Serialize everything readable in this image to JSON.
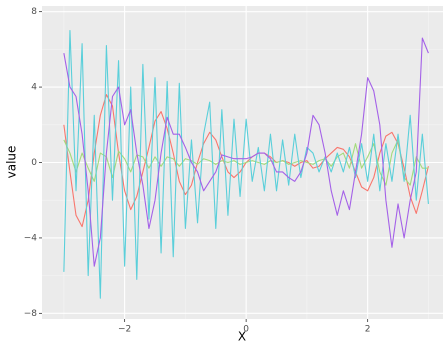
{
  "chart_data": {
    "type": "line",
    "xlabel": "X",
    "ylabel": "value",
    "x": [
      -3.0,
      -2.9,
      -2.8,
      -2.7,
      -2.6,
      -2.5,
      -2.4,
      -2.3,
      -2.2,
      -2.1,
      -2.0,
      -1.9,
      -1.8,
      -1.7,
      -1.6,
      -1.5,
      -1.4,
      -1.3,
      -1.2,
      -1.1,
      -1.0,
      -0.9,
      -0.8,
      -0.7,
      -0.6,
      -0.5,
      -0.4,
      -0.3,
      -0.2,
      -0.1,
      0.0,
      0.1,
      0.2,
      0.3,
      0.4,
      0.5,
      0.6,
      0.7,
      0.8,
      0.9,
      1.0,
      1.1,
      1.2,
      1.3,
      1.4,
      1.5,
      1.6,
      1.7,
      1.8,
      1.9,
      2.0,
      2.1,
      2.2,
      2.3,
      2.4,
      2.5,
      2.6,
      2.7,
      2.8,
      2.9,
      3.0
    ],
    "series": [
      {
        "color": "#F8766D",
        "values": [
          2,
          -0.5,
          -2.8,
          -3.4,
          -2,
          0.5,
          2.5,
          3.6,
          3.0,
          0.5,
          -1.5,
          -2.5,
          -1.8,
          -0.5,
          0.8,
          2.2,
          2.7,
          1.8,
          0.5,
          -1.0,
          -1.7,
          -1.2,
          0,
          1.0,
          1.6,
          1.2,
          0.3,
          -0.5,
          -0.8,
          -0.5,
          0,
          0.3,
          0.5,
          0.5,
          0.3,
          0,
          0.1,
          0,
          -0.2,
          0,
          0.1,
          -0.3,
          -0.2,
          0.2,
          0.5,
          0.8,
          0.7,
          0.3,
          -0.5,
          -1.3,
          -1.5,
          -0.8,
          0.5,
          1.4,
          1.6,
          1.0,
          -0.3,
          -1.8,
          -2.7,
          -1.5,
          -0.2
        ]
      },
      {
        "color": "#A3DA7B",
        "values": [
          1.2,
          0.5,
          -0.5,
          0.5,
          -0.3,
          -1.0,
          0.5,
          0.3,
          -0.8,
          0.6,
          0.2,
          -0.5,
          0.4,
          0.3,
          -0.3,
          0.3,
          -0.2,
          0.3,
          0.2,
          -0.2,
          0.2,
          0.1,
          -0.1,
          0.2,
          0.1,
          -0.1,
          0.1,
          0.0,
          0.1,
          -0.1,
          0.0,
          0.1,
          0.0,
          -0.1,
          0.1,
          0.0,
          0.1,
          -0.1,
          0.0,
          0.1,
          0.0,
          -0.1,
          0.1,
          0.2,
          -0.2,
          0.3,
          0.5,
          -0.3,
          1.0,
          -0.3,
          0.3,
          1.0,
          -0.5,
          -1.2,
          0.5,
          1.2,
          -0.8,
          -1.2,
          0.3,
          -0.3,
          -0.3
        ]
      },
      {
        "color": "#5ACFDA",
        "values": [
          -5.8,
          7.0,
          -1.5,
          6.3,
          -6.0,
          2.5,
          -7.2,
          6.2,
          -2.0,
          5.4,
          -5.5,
          4.0,
          -6.2,
          5.2,
          -3.0,
          4.5,
          -4.8,
          4.3,
          -5.0,
          4.2,
          -3.5,
          1.2,
          -3.2,
          1.5,
          3.2,
          -3.5,
          2.8,
          -2.8,
          2.3,
          -1.8,
          2.3,
          -1.0,
          0.8,
          -1.5,
          1.5,
          -1.5,
          1.2,
          -1.2,
          1.5,
          -0.8,
          0.8,
          0.5,
          -0.5,
          0.3,
          -0.5,
          0.5,
          -0.5,
          0.8,
          -0.8,
          1.0,
          -1.0,
          1.5,
          -1.5,
          1.0,
          -1.0,
          1.5,
          -1.0,
          2.5,
          -2.0,
          1.5,
          -2.2
        ]
      },
      {
        "color": "#A461E8",
        "values": [
          5.8,
          4.0,
          3.5,
          1.5,
          -1.5,
          -5.5,
          -4.0,
          0.5,
          3.5,
          4.0,
          2.0,
          2.8,
          0.5,
          -1.2,
          -3.5,
          -2.0,
          0.5,
          2.4,
          1.5,
          1.5,
          0.8,
          0,
          -0.5,
          -1.5,
          -1.0,
          -0.5,
          0.4,
          0.3,
          0.2,
          0.2,
          0.2,
          0.3,
          0.5,
          0.5,
          0.2,
          -0.5,
          -0.5,
          -0.8,
          -1.0,
          -0.5,
          0.5,
          2.5,
          2.0,
          0.5,
          -1.5,
          -2.8,
          -1.5,
          -2.5,
          -0.5,
          1.5,
          4.5,
          3.8,
          2.0,
          -2.0,
          -4.5,
          -2.2,
          -4.0,
          -2.0,
          -0.5,
          6.6,
          5.8
        ]
      }
    ],
    "xlim": [
      -3.36,
      3.24
    ],
    "ylim": [
      -8.3,
      8.3
    ],
    "xticks": [
      {
        "value": -2,
        "label": "−2"
      },
      0,
      2
    ],
    "yticks": [
      {
        "value": -8,
        "label": "−8"
      },
      {
        "value": -4,
        "label": "−4"
      },
      0,
      4,
      8
    ],
    "grid": true
  }
}
